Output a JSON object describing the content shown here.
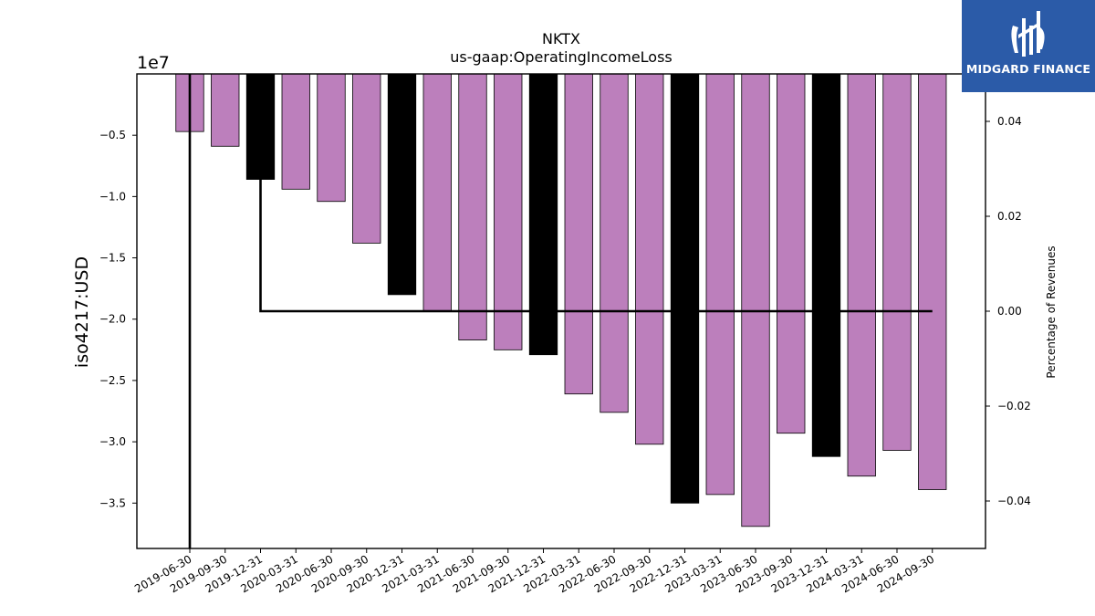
{
  "chart_data": {
    "type": "bar",
    "title": "NKTX",
    "subtitle": "us-gaap:OperatingIncomeLoss",
    "ylabel": "iso4217:USD",
    "y2label": "Percentage of Revenues",
    "offset_label": "1e7",
    "scale": 10000000,
    "ylim": [
      -38700000,
      0
    ],
    "y2lim": [
      -0.05,
      0.05
    ],
    "yticks": [
      -0.5,
      -1.0,
      -1.5,
      -2.0,
      -2.5,
      -3.0,
      -3.5
    ],
    "ytick_labels": [
      "−0.5",
      "−1.0",
      "−1.5",
      "−2.0",
      "−2.5",
      "−3.0",
      "−3.5"
    ],
    "y2ticks": [
      0.04,
      0.02,
      0.0,
      -0.02,
      -0.04
    ],
    "y2tick_labels": [
      "0.04",
      "0.02",
      "0.00",
      "−0.02",
      "−0.04"
    ],
    "categories": [
      "2019-06-30",
      "2019-09-30",
      "2019-12-31",
      "2020-03-31",
      "2020-06-30",
      "2020-09-30",
      "2020-12-31",
      "2021-03-31",
      "2021-06-30",
      "2021-09-30",
      "2021-12-31",
      "2022-03-31",
      "2022-06-30",
      "2022-09-30",
      "2022-12-31",
      "2023-03-31",
      "2023-06-30",
      "2023-09-30",
      "2023-12-31",
      "2024-03-31",
      "2024-06-30",
      "2024-09-30"
    ],
    "values": [
      -4700000,
      -5900000,
      -8600000,
      -9400000,
      -10400000,
      -13800000,
      -18000000,
      -19300000,
      -21700000,
      -22500000,
      -22900000,
      -26100000,
      -27600000,
      -30200000,
      -35000000,
      -34300000,
      -36900000,
      -29300000,
      -31200000,
      -32800000,
      -30700000,
      -33900000
    ],
    "annual": [
      false,
      false,
      true,
      false,
      false,
      false,
      true,
      false,
      false,
      false,
      true,
      false,
      false,
      false,
      true,
      false,
      false,
      false,
      true,
      false,
      false,
      false
    ],
    "colors": {
      "quarterly": "#bc7fbc",
      "annual": "#000000"
    },
    "percent_series": {
      "x": [
        "2019-06-30",
        "2019-12-31",
        "2019-12-31",
        "2024-09-30"
      ],
      "values": [
        -0.05,
        0.05,
        0.0,
        0.0
      ]
    },
    "grid": false,
    "legend": "none"
  },
  "logo": {
    "text": "MIDGARD FINANCE",
    "icon": "midgard-logo-icon"
  }
}
